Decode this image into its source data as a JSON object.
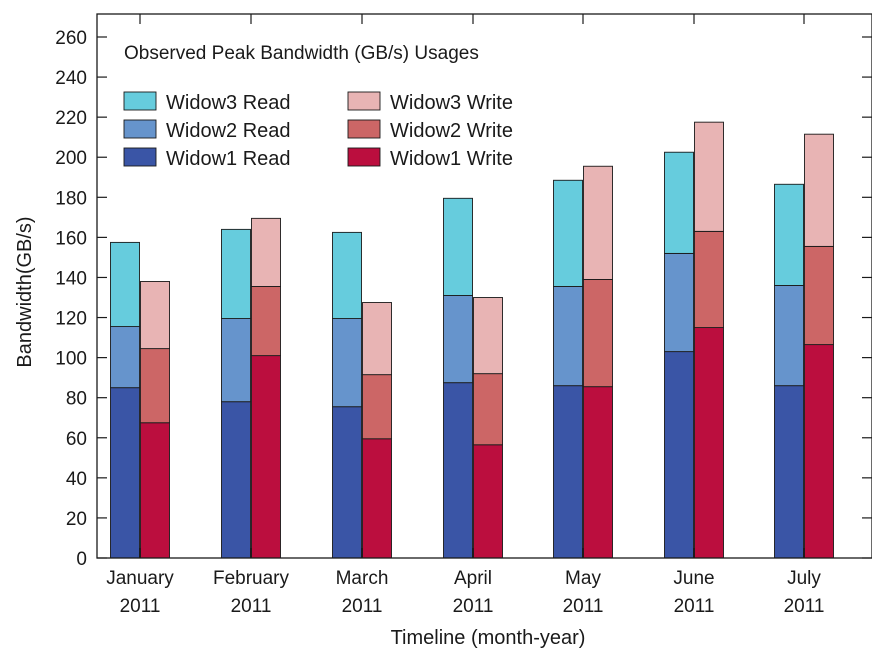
{
  "chart_data": {
    "type": "bar",
    "stacked": true,
    "title": "Observed Peak Bandwidth (GB/s) Usages",
    "xlabel": "Timeline (month-year)",
    "ylabel": "Bandwidth(GB/s)",
    "ylim": [
      0,
      270
    ],
    "yticks": [
      0,
      20,
      40,
      60,
      80,
      100,
      120,
      140,
      160,
      180,
      200,
      220,
      240,
      260
    ],
    "categories": [
      [
        "January",
        "2011"
      ],
      [
        "February",
        "2011"
      ],
      [
        "March",
        "2011"
      ],
      [
        "April",
        "2011"
      ],
      [
        "May",
        "2011"
      ],
      [
        "June",
        "2011"
      ],
      [
        "July",
        "2011"
      ]
    ],
    "series": [
      {
        "name": "Widow1 Read",
        "stack": "read",
        "color": "#3A55A6",
        "values": [
          85,
          78,
          75.5,
          87.5,
          86,
          103,
          86
        ]
      },
      {
        "name": "Widow2 Read",
        "stack": "read",
        "color": "#6694CC",
        "values": [
          30.5,
          41.5,
          44,
          43.5,
          49.5,
          49,
          50
        ]
      },
      {
        "name": "Widow3 Read",
        "stack": "read",
        "color": "#66CCDD",
        "values": [
          42,
          44.5,
          43,
          48.5,
          53,
          50.5,
          50.5
        ]
      },
      {
        "name": "Widow1 Write",
        "stack": "write",
        "color": "#BB0E3E",
        "values": [
          67.5,
          101,
          59.5,
          56.5,
          85.5,
          115,
          106.5
        ]
      },
      {
        "name": "Widow2 Write",
        "stack": "write",
        "color": "#CC6666",
        "values": [
          37,
          34.5,
          32,
          35.5,
          53.5,
          48,
          49
        ]
      },
      {
        "name": "Widow3 Write",
        "stack": "write",
        "color": "#E8B4B4",
        "values": [
          33.5,
          34,
          36,
          38,
          56.5,
          54.5,
          56
        ]
      }
    ],
    "legend": {
      "position": "top-left",
      "columns": [
        [
          "Widow3 Read",
          "Widow2 Read",
          "Widow1 Read"
        ],
        [
          "Widow3 Write",
          "Widow2 Write",
          "Widow1 Write"
        ]
      ]
    },
    "grid": false
  }
}
